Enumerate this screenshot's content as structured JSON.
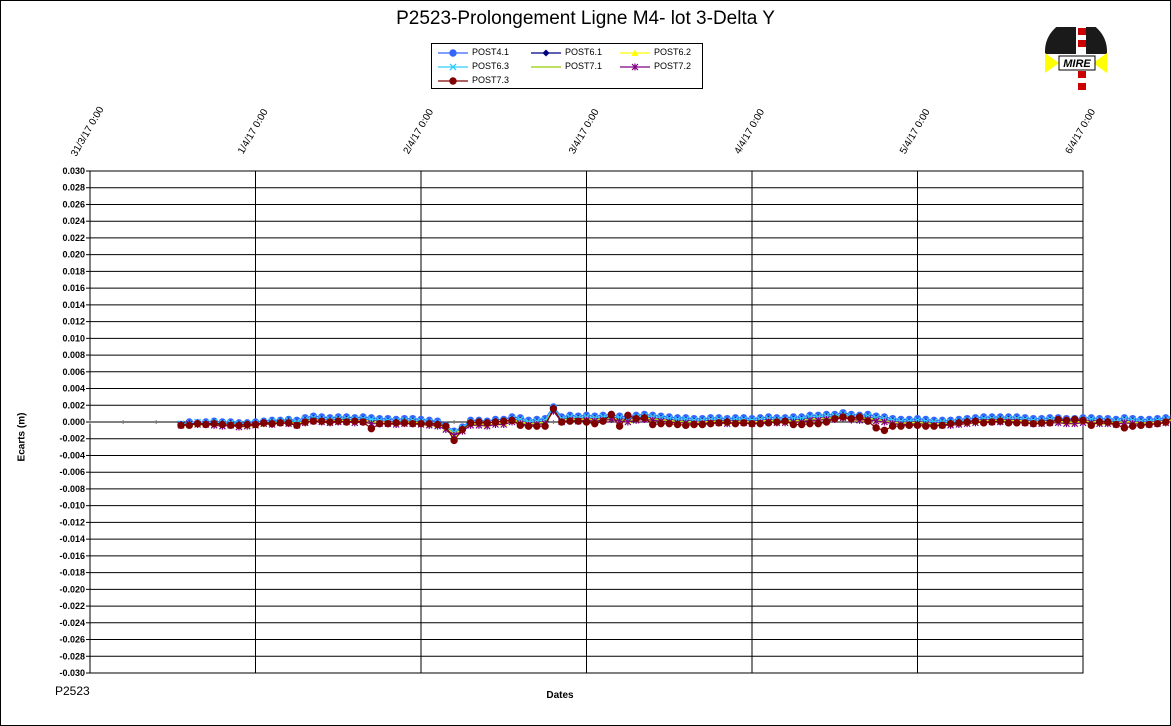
{
  "chart_data": {
    "type": "line",
    "title": "P2523-Prolongement  Ligne  M4- lot 3-Delta Y",
    "xlabel": "Dates",
    "ylabel": "Ecarts (m)",
    "ylim": [
      -0.03,
      0.03
    ],
    "xlim": [
      "31/3/17 0:00",
      "6/4/17 0:00"
    ],
    "y_ticks": [
      "0.030",
      "0.028",
      "0.026",
      "0.024",
      "0.022",
      "0.020",
      "0.018",
      "0.016",
      "0.014",
      "0.012",
      "0.010",
      "0.008",
      "0.006",
      "0.004",
      "0.002",
      "0.000",
      "-0.002",
      "-0.004",
      "-0.006",
      "-0.008",
      "-0.010",
      "-0.012",
      "-0.014",
      "-0.016",
      "-0.018",
      "-0.020",
      "-0.022",
      "-0.024",
      "-0.026",
      "-0.028",
      "-0.030"
    ],
    "x_ticks": [
      "31/3/17 0:00",
      "1/4/17 0:00",
      "2/4/17 0:00",
      "3/4/17 0:00",
      "4/4/17 0:00",
      "5/4/17 0:00",
      "6/4/17 0:00"
    ],
    "grid": true,
    "legend_position": "top-center",
    "x_start": 0.55,
    "x_step": 0.05,
    "series": [
      {
        "name": "POST4.1",
        "color": "#3366FF",
        "marker": "circle",
        "values": [
          -0.0003,
          0.0,
          -0.0001,
          0.0,
          0.0001,
          0.0,
          0.0,
          -0.0001,
          -0.0001,
          0.0,
          0.0001,
          0.0002,
          0.0002,
          0.0003,
          0.0002,
          0.0005,
          0.0007,
          0.0006,
          0.0005,
          0.0006,
          0.0006,
          0.0005,
          0.0006,
          0.0005,
          0.0004,
          0.0004,
          0.0003,
          0.0004,
          0.0004,
          0.0003,
          0.0002,
          0.0001,
          -0.0004,
          -0.0011,
          -0.0006,
          0.0002,
          0.0002,
          0.0001,
          0.0003,
          0.0003,
          0.0006,
          0.0005,
          0.0002,
          0.0003,
          0.0004,
          0.0018,
          0.0006,
          0.0008,
          0.0007,
          0.0008,
          0.0007,
          0.0008,
          0.0009,
          0.0007,
          0.0006,
          0.0008,
          0.0009,
          0.0008,
          0.0007,
          0.0006,
          0.0005,
          0.0005,
          0.0004,
          0.0004,
          0.0005,
          0.0005,
          0.0004,
          0.0005,
          0.0005,
          0.0004,
          0.0005,
          0.0006,
          0.0005,
          0.0005,
          0.0006,
          0.0006,
          0.0008,
          0.0008,
          0.0009,
          0.0009,
          0.0011,
          0.0009,
          0.0008,
          0.0009,
          0.0007,
          0.0006,
          0.0004,
          0.0003,
          0.0003,
          0.0004,
          0.0003,
          0.0002,
          0.0002,
          0.0002,
          0.0003,
          0.0004,
          0.0005,
          0.0006,
          0.0006,
          0.0006,
          0.0006,
          0.0006,
          0.0005,
          0.0004,
          0.0004,
          0.0005,
          0.0005,
          0.0004,
          0.0004,
          0.0005,
          0.0005,
          0.0004,
          0.0004,
          0.0003,
          0.0005,
          0.0004,
          0.0003,
          0.0003,
          0.0004,
          0.0005,
          0.0007,
          0.0008,
          0.0007,
          0.0006,
          0.0007,
          0.0006,
          0.0007,
          0.0008,
          0.0008,
          0.0008,
          0.0007
        ]
      },
      {
        "name": "POST6.1",
        "color": "#000080",
        "marker": "diamond",
        "values": [
          -0.0003,
          -0.0002,
          -0.0001,
          -0.0002,
          -0.0001,
          -0.0002,
          -0.0002,
          -0.0003,
          -0.0003,
          -0.0002,
          -0.0001,
          0.0,
          0.0,
          0.0001,
          -0.0001,
          0.0002,
          0.0004,
          0.0003,
          0.0002,
          0.0003,
          0.0003,
          0.0002,
          0.0003,
          0.0002,
          0.0001,
          0.0001,
          0.0,
          0.0001,
          0.0001,
          0.0,
          -0.0001,
          -0.0002,
          -0.0006,
          -0.0013,
          -0.0008,
          -0.0001,
          -0.0001,
          -0.0002,
          0.0,
          0.0,
          0.0003,
          0.0002,
          -0.0001,
          0.0,
          0.0001,
          0.0016,
          0.0003,
          0.0005,
          0.0004,
          0.0005,
          0.0004,
          0.0005,
          0.0006,
          0.0004,
          0.0003,
          0.0005,
          0.0006,
          0.0005,
          0.0004,
          0.0003,
          0.0002,
          0.0002,
          0.0001,
          0.0001,
          0.0002,
          0.0002,
          0.0001,
          0.0002,
          0.0002,
          0.0001,
          0.0002,
          0.0003,
          0.0002,
          0.0002,
          0.0003,
          0.0003,
          0.0005,
          0.0005,
          0.0006,
          0.0006,
          0.0008,
          0.0006,
          0.0005,
          0.0006,
          0.0004,
          0.0003,
          0.0001,
          0.0,
          0.0,
          0.0001,
          0.0,
          -0.0001,
          -0.0001,
          -0.0001,
          0.0,
          0.0001,
          0.0002,
          0.0003,
          0.0003,
          0.0003,
          0.0003,
          0.0003,
          0.0002,
          0.0001,
          0.0001,
          0.0002,
          0.0002,
          0.0001,
          0.0001,
          0.0002,
          0.0002,
          0.0001,
          0.0001,
          0.0,
          0.0002,
          0.0001,
          0.0,
          0.0,
          0.0001,
          0.0002,
          0.0004,
          0.0005,
          0.0004,
          0.0003,
          0.0004,
          0.0003,
          0.0004,
          0.0005,
          0.0005,
          0.0005,
          0.0004
        ]
      },
      {
        "name": "POST6.2",
        "color": "#FFFF00",
        "marker": "triangle",
        "values": [
          -0.0004,
          -0.0003,
          -0.0002,
          -0.0003,
          -0.0002,
          -0.0003,
          -0.0003,
          -0.0004,
          -0.0004,
          -0.0003,
          -0.0002,
          -0.0001,
          -0.0001,
          0.0,
          -0.0002,
          0.0001,
          0.0003,
          0.0002,
          0.0001,
          0.0002,
          0.0002,
          0.0001,
          0.0002,
          0.0001,
          0.0,
          0.0,
          -0.0001,
          0.0,
          0.0,
          -0.0001,
          -0.0002,
          -0.0003,
          -0.0007,
          -0.0014,
          -0.0009,
          -0.0002,
          -0.0002,
          -0.0003,
          -0.0001,
          -0.0001,
          0.0002,
          0.0001,
          -0.0002,
          -0.0001,
          0.0,
          0.0015,
          0.0002,
          0.0004,
          0.0003,
          0.0004,
          0.0003,
          0.0004,
          0.0005,
          0.0003,
          0.0002,
          0.0004,
          0.0005,
          0.0004,
          0.0003,
          0.0002,
          0.0001,
          0.0001,
          0.0,
          0.0,
          0.0001,
          0.0001,
          0.0,
          0.0001,
          0.0001,
          0.0,
          0.0001,
          0.0002,
          0.0001,
          0.0001,
          0.0002,
          0.0002,
          0.0004,
          0.0004,
          0.0005,
          0.0005,
          0.0007,
          0.0005,
          0.0004,
          0.0005,
          0.0003,
          0.0002,
          0.0,
          -0.0001,
          -0.0001,
          0.0,
          -0.0001,
          -0.0002,
          -0.0002,
          -0.0002,
          -0.0001,
          0.0,
          0.0001,
          0.0002,
          0.0002,
          0.0002,
          0.0002,
          0.0002,
          0.0001,
          0.0,
          0.0,
          0.0001,
          0.0001,
          0.0,
          0.0,
          0.0001,
          0.0001,
          0.0,
          0.0,
          -0.0001,
          0.0001,
          0.0,
          -0.0001,
          -0.0001,
          0.0,
          0.0001,
          0.0003,
          0.0004,
          0.0003,
          0.0002,
          0.0003,
          0.0002,
          0.0003,
          0.0004,
          0.0004,
          0.0004,
          0.0003
        ]
      },
      {
        "name": "POST6.3",
        "color": "#33CCFF",
        "marker": "x",
        "values": [
          -0.0002,
          -0.0001,
          0.0,
          -0.0001,
          0.0,
          -0.0001,
          -0.0001,
          -0.0002,
          -0.0002,
          -0.0001,
          0.0,
          0.0001,
          0.0001,
          0.0002,
          0.0,
          0.0003,
          0.0005,
          0.0004,
          0.0003,
          0.0004,
          0.0004,
          0.0003,
          0.0004,
          0.0003,
          0.0002,
          0.0002,
          0.0001,
          0.0002,
          0.0002,
          0.0001,
          0.0,
          -0.0001,
          -0.0005,
          -0.0012,
          -0.0007,
          0.0,
          0.0,
          -0.0001,
          0.0001,
          0.0001,
          0.0004,
          0.0003,
          0.0,
          0.0001,
          0.0002,
          0.0017,
          0.0004,
          0.0006,
          0.0005,
          0.0006,
          0.0005,
          0.0006,
          0.0007,
          0.0005,
          0.0004,
          0.0006,
          0.0007,
          0.0006,
          0.0005,
          0.0004,
          0.0003,
          0.0003,
          0.0002,
          0.0002,
          0.0003,
          0.0003,
          0.0002,
          0.0003,
          0.0003,
          0.0002,
          0.0003,
          0.0004,
          0.0003,
          0.0003,
          0.0004,
          0.0004,
          0.0006,
          0.0006,
          0.0007,
          0.0007,
          0.0009,
          0.0007,
          0.0006,
          0.0007,
          0.0005,
          0.0004,
          0.0002,
          0.0001,
          0.0001,
          0.0002,
          0.0001,
          0.0,
          0.0,
          0.0,
          0.0001,
          0.0002,
          0.0003,
          0.0004,
          0.0004,
          0.0004,
          0.0004,
          0.0004,
          0.0003,
          0.0002,
          0.0002,
          0.0003,
          0.0003,
          0.0002,
          0.0002,
          0.0003,
          0.0003,
          0.0002,
          0.0002,
          0.0001,
          0.0003,
          0.0002,
          0.0001,
          0.0001,
          0.0002,
          0.0003,
          0.0005,
          0.0006,
          0.0005,
          0.0004,
          0.0005,
          0.0004,
          0.0005,
          0.0006,
          0.0006,
          0.0006,
          0.0005
        ]
      },
      {
        "name": "POST7.1",
        "color": "#99CC00",
        "marker": "none",
        "values": [
          -0.0004,
          -0.0003,
          -0.0003,
          -0.0004,
          -0.0003,
          -0.0004,
          -0.0004,
          -0.0005,
          -0.0005,
          -0.0004,
          -0.0003,
          -0.0002,
          -0.0002,
          -0.0001,
          -0.0003,
          0.0,
          0.0002,
          0.0001,
          0.0,
          0.0001,
          0.0001,
          0.0,
          0.0001,
          0.0,
          -0.0001,
          -0.0001,
          -0.0002,
          -0.0001,
          -0.0001,
          -0.0002,
          -0.0003,
          -0.0004,
          -0.0008,
          -0.0015,
          -0.001,
          -0.0003,
          -0.0003,
          -0.0004,
          -0.0002,
          -0.0002,
          0.0001,
          0.0,
          -0.0003,
          -0.0002,
          -0.0001,
          0.0014,
          0.0001,
          0.0003,
          0.0002,
          0.0003,
          0.0002,
          0.0003,
          0.0004,
          0.0002,
          0.0001,
          0.0003,
          0.0004,
          0.0003,
          0.0002,
          0.0001,
          0.0,
          0.0,
          -0.0001,
          -0.0001,
          0.0,
          0.0,
          -0.0001,
          0.0,
          0.0,
          -0.0001,
          0.0,
          0.0001,
          0.0,
          0.0,
          0.0001,
          0.0001,
          0.0003,
          0.0003,
          0.0004,
          0.0004,
          0.0006,
          0.0004,
          0.0003,
          0.0004,
          0.0002,
          0.0001,
          -0.0001,
          -0.0002,
          -0.0002,
          -0.0001,
          -0.0002,
          -0.0003,
          -0.0003,
          -0.0003,
          -0.0002,
          -0.0001,
          0.0,
          0.0001,
          0.0001,
          0.0001,
          0.0001,
          0.0001,
          0.0,
          -0.0001,
          -0.0001,
          0.0,
          0.0,
          -0.0001,
          -0.0001,
          0.0,
          0.0,
          -0.0001,
          -0.0001,
          -0.0002,
          0.0,
          -0.0001,
          -0.0002,
          -0.0002,
          -0.0001,
          0.0,
          0.0002,
          0.0003,
          0.0002,
          0.0001,
          0.0002,
          0.0001,
          0.0002,
          0.0003,
          0.0003,
          0.0003,
          0.0002
        ]
      },
      {
        "name": "POST7.2",
        "color": "#800080",
        "marker": "star",
        "values": [
          -0.0004,
          -0.0002,
          -0.0003,
          -0.0003,
          -0.0004,
          -0.0005,
          -0.0004,
          -0.0006,
          -0.0005,
          -0.0004,
          -0.0002,
          -0.0003,
          -0.0001,
          -0.0002,
          -0.0004,
          -0.0001,
          0.0001,
          0.0,
          -0.0001,
          0.0,
          0.0,
          -0.0001,
          0.0,
          -0.0002,
          -0.0002,
          -0.0002,
          -0.0003,
          -0.0002,
          -0.0002,
          -0.0003,
          -0.0004,
          -0.0005,
          -0.0009,
          -0.0016,
          -0.0011,
          -0.0004,
          -0.0004,
          -0.0005,
          -0.0003,
          -0.0003,
          0.0,
          -0.0002,
          -0.0004,
          -0.0003,
          -0.0002,
          0.0013,
          0.0,
          0.0002,
          0.0001,
          0.0002,
          0.0001,
          0.0002,
          0.0003,
          0.0001,
          0.0,
          0.0002,
          0.0003,
          0.0002,
          0.0001,
          0.0,
          -0.0001,
          -0.0001,
          -0.0002,
          -0.0002,
          -0.0001,
          -0.0001,
          -0.0002,
          -0.0001,
          -0.0001,
          -0.0002,
          -0.0001,
          0.0,
          -0.0001,
          -0.0001,
          0.0,
          0.0,
          0.0002,
          0.0002,
          0.0003,
          0.0003,
          0.0005,
          0.0003,
          0.0002,
          0.0003,
          0.0001,
          0.0,
          -0.0002,
          -0.0003,
          -0.0003,
          -0.0002,
          -0.0003,
          -0.0004,
          -0.0004,
          -0.0004,
          -0.0003,
          -0.0002,
          -0.0001,
          0.0,
          0.0,
          0.0,
          0.0,
          0.0,
          -0.0001,
          -0.0002,
          -0.0002,
          -0.0001,
          -0.0001,
          -0.0002,
          -0.0002,
          -0.0001,
          -0.0001,
          -0.0002,
          -0.0002,
          -0.0003,
          -0.0001,
          -0.0002,
          -0.0003,
          -0.0003,
          -0.0002,
          -0.0001,
          0.0001,
          0.0002,
          0.0001,
          0.0,
          0.0001,
          0.0,
          0.0001,
          0.0002,
          0.0002,
          0.0002,
          0.0001
        ]
      },
      {
        "name": "POST7.3",
        "color": "#800000",
        "marker": "circle",
        "values": [
          -0.0004,
          -0.0004,
          -0.0002,
          -0.0003,
          -0.0002,
          -0.0003,
          -0.0004,
          -0.0004,
          -0.0003,
          -0.0003,
          -0.0001,
          -0.0002,
          -0.0001,
          -0.0001,
          -0.0004,
          0.0,
          0.0001,
          0.0001,
          0.0,
          0.0001,
          0.0,
          0.0001,
          0.0,
          -0.0008,
          -0.0002,
          -0.0002,
          -0.0001,
          -0.0001,
          -0.0002,
          -0.0002,
          -0.0002,
          -0.0003,
          -0.0005,
          -0.0022,
          -0.0009,
          -0.0001,
          0.0,
          -0.0001,
          0.0,
          0.0001,
          0.0002,
          -0.0004,
          -0.0005,
          -0.0005,
          -0.0005,
          0.0016,
          0.0,
          0.0001,
          0.0001,
          0.0,
          -0.0002,
          0.0001,
          0.0009,
          -0.0005,
          0.0008,
          0.0004,
          0.0005,
          -0.0003,
          -0.0002,
          -0.0002,
          -0.0003,
          -0.0004,
          -0.0003,
          -0.0003,
          -0.0002,
          -0.0001,
          0.0,
          -0.0002,
          -0.0001,
          -0.0002,
          -0.0002,
          -0.0001,
          0.0,
          0.0001,
          -0.0003,
          -0.0003,
          -0.0002,
          -0.0002,
          0.0,
          0.0004,
          0.0006,
          0.0004,
          0.0006,
          0.0001,
          -0.0007,
          -0.001,
          -0.0005,
          -0.0005,
          -0.0004,
          -0.0004,
          -0.0005,
          -0.0005,
          -0.0004,
          -0.0002,
          -0.0001,
          0.0,
          0.0001,
          -0.0001,
          0.0,
          0.0001,
          -0.0001,
          -0.0001,
          -0.0001,
          -0.0002,
          -0.0001,
          -0.0001,
          0.0003,
          0.0002,
          0.0003,
          0.0002,
          -0.0004,
          0.0,
          0.0,
          -0.0003,
          -0.0007,
          -0.0005,
          -0.0004,
          -0.0003,
          -0.0002,
          0.0,
          0.0007,
          0.0001,
          -0.0001,
          -0.0001,
          -0.0001,
          -0.0001,
          0.0001,
          0.0001,
          0.0002,
          0.0001,
          0.0001
        ]
      }
    ]
  },
  "logo": {
    "text": "MIRE"
  },
  "footer_ref": "P2523"
}
